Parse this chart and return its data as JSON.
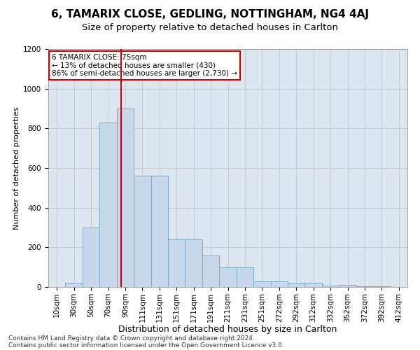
{
  "title1": "6, TAMARIX CLOSE, GEDLING, NOTTINGHAM, NG4 4AJ",
  "title2": "Size of property relative to detached houses in Carlton",
  "xlabel": "Distribution of detached houses by size in Carlton",
  "ylabel": "Number of detached properties",
  "categories": [
    "10sqm",
    "30sqm",
    "50sqm",
    "70sqm",
    "90sqm",
    "111sqm",
    "131sqm",
    "151sqm",
    "171sqm",
    "191sqm",
    "211sqm",
    "231sqm",
    "251sqm",
    "272sqm",
    "292sqm",
    "312sqm",
    "332sqm",
    "352sqm",
    "372sqm",
    "392sqm",
    "412sqm"
  ],
  "values": [
    0,
    20,
    300,
    830,
    900,
    560,
    560,
    240,
    240,
    160,
    100,
    100,
    30,
    30,
    20,
    20,
    8,
    10,
    5,
    3,
    0
  ],
  "bar_color": "#c8d8ea",
  "bar_edge_color": "#7aaac8",
  "vline_x": 3.75,
  "vline_color": "#cc0000",
  "annotation_text": "6 TAMARIX CLOSE: 75sqm\n← 13% of detached houses are smaller (430)\n86% of semi-detached houses are larger (2,730) →",
  "annotation_box_color": "#ffffff",
  "annotation_box_edge": "#cc0000",
  "ylim": [
    0,
    1200
  ],
  "yticks": [
    0,
    200,
    400,
    600,
    800,
    1000,
    1200
  ],
  "grid_color": "#c8c8d0",
  "bg_color": "#dce6f0",
  "footer1": "Contains HM Land Registry data © Crown copyright and database right 2024.",
  "footer2": "Contains public sector information licensed under the Open Government Licence v3.0.",
  "title1_fontsize": 11,
  "title2_fontsize": 9.5,
  "xlabel_fontsize": 9,
  "ylabel_fontsize": 8,
  "tick_fontsize": 7.5,
  "footer_fontsize": 6.5,
  "ann_fontsize": 7.5
}
